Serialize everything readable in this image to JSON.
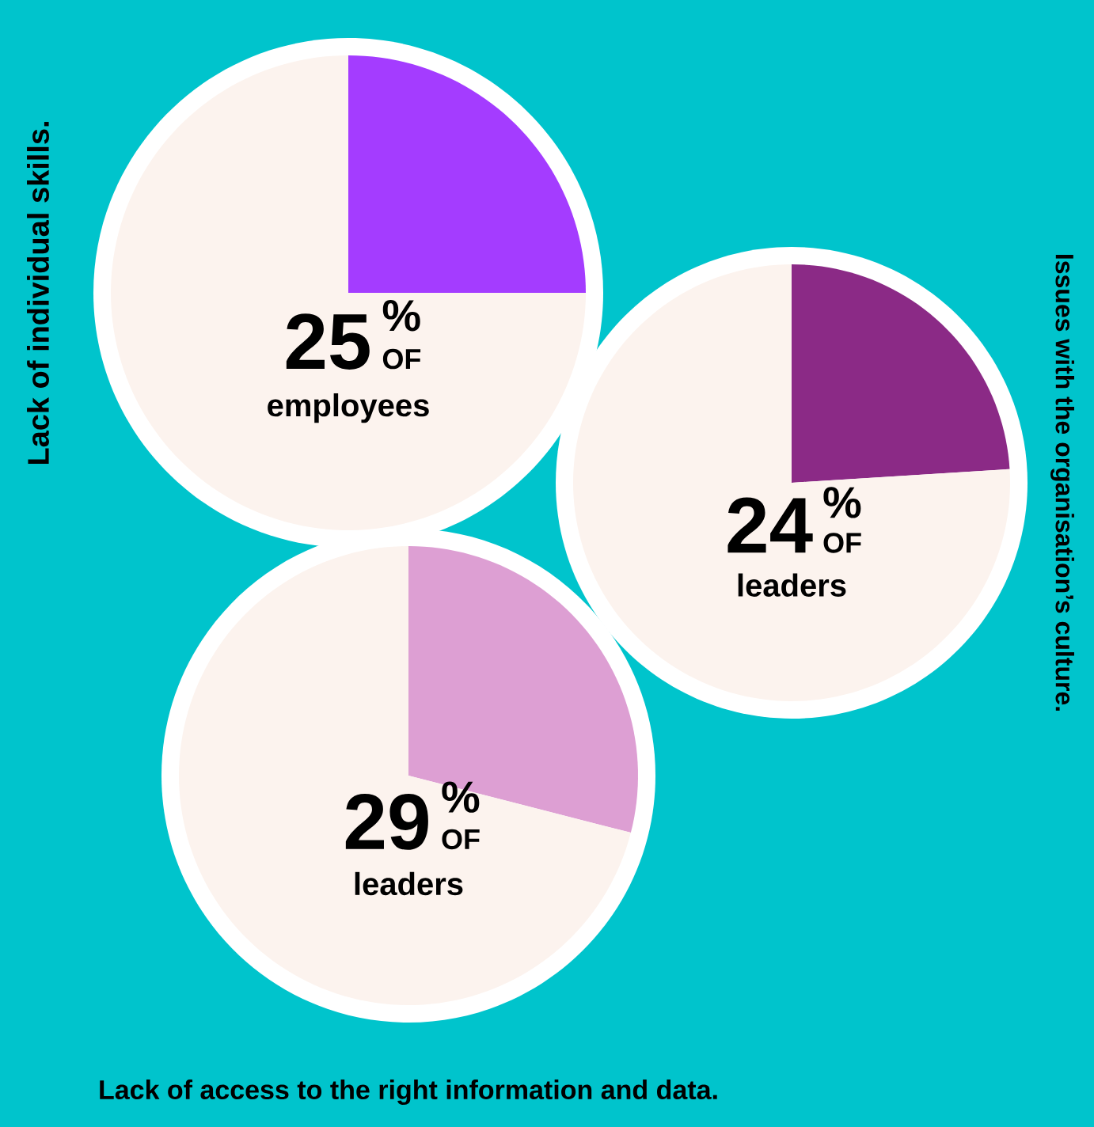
{
  "chart_data": [
    {
      "type": "pie",
      "title": "Lack of individual skills.",
      "categories": [
        null,
        null
      ],
      "values": [
        25,
        75
      ],
      "colors": [
        "#a43cff",
        "#fcf3ee"
      ],
      "annotations": [
        "25",
        "%",
        "OF",
        "employees"
      ]
    },
    {
      "type": "pie",
      "title": "Issues with the organisation’s culture.",
      "categories": [
        null,
        null
      ],
      "values": [
        24,
        76
      ],
      "colors": [
        "#8b2a86",
        "#fcf3ee"
      ],
      "annotations": [
        "24",
        "%",
        "OF",
        "leaders"
      ]
    },
    {
      "type": "pie",
      "title": "Lack of access to the right information and data.",
      "categories": [
        null,
        null
      ],
      "values": [
        29,
        71
      ],
      "colors": [
        "#dd9fd3",
        "#fcf3ee"
      ],
      "annotations": [
        "29",
        "%",
        "OF",
        "leaders"
      ]
    }
  ]
}
